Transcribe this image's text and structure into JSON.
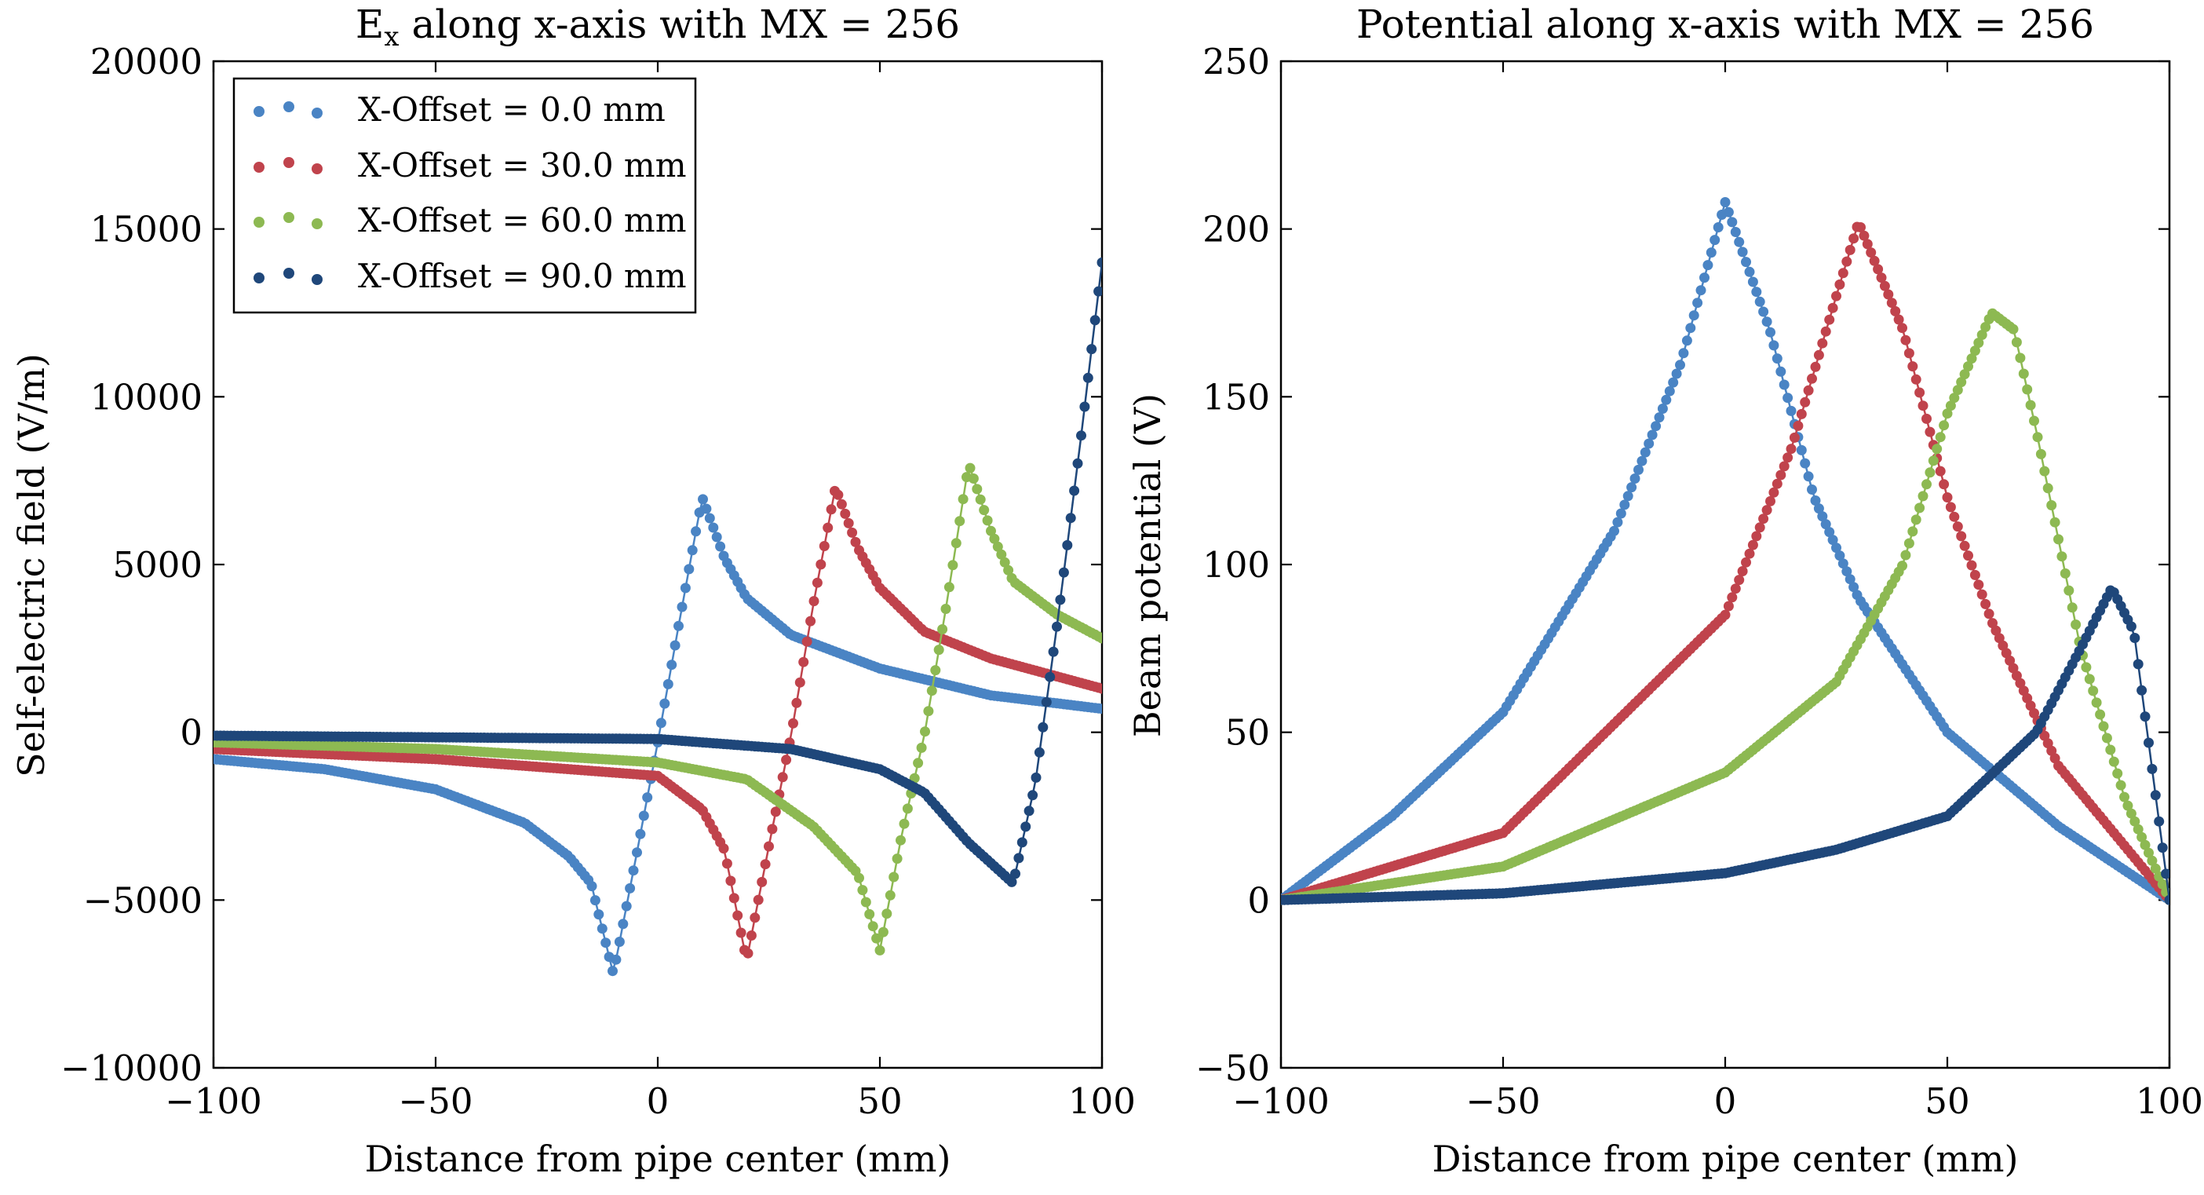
{
  "chart_data": [
    {
      "type": "scatter",
      "title": "E",
      "title_sub": "x",
      "title_rest": " along x-axis with MX = 256",
      "xlabel": "Distance from pipe center (mm)",
      "ylabel": "Self-electric field (V/m)",
      "xlim": [
        -100,
        100
      ],
      "ylim": [
        -10000,
        20000
      ],
      "xticks": [
        -100,
        -50,
        0,
        50,
        100
      ],
      "yticks": [
        -10000,
        -5000,
        0,
        5000,
        10000,
        15000,
        20000
      ],
      "xtick_labels": [
        "−100",
        "−50",
        "0",
        "50",
        "100"
      ],
      "ytick_labels": [
        "−10000",
        "−5000",
        "0",
        "5000",
        "10000",
        "15000",
        "20000"
      ],
      "legend": "top-left",
      "series": [
        {
          "name": "X-Offset = 0.0 mm",
          "offset": 0,
          "color": "#4a84c4",
          "points": [
            [
              -100,
              -800
            ],
            [
              -75,
              -1100
            ],
            [
              -50,
              -1700
            ],
            [
              -30,
              -2700
            ],
            [
              -20,
              -3700
            ],
            [
              -15,
              -4500
            ],
            [
              -10,
              -7200
            ],
            [
              -5,
              -3800
            ],
            [
              0,
              -300
            ],
            [
              5,
              3400
            ],
            [
              10,
              7000
            ],
            [
              15,
              5200
            ],
            [
              20,
              4000
            ],
            [
              30,
              2900
            ],
            [
              50,
              1900
            ],
            [
              75,
              1100
            ],
            [
              100,
              700
            ]
          ]
        },
        {
          "name": "X-Offset = 30.0 mm",
          "offset": 30,
          "color": "#c0434c",
          "points": [
            [
              -100,
              -500
            ],
            [
              -50,
              -800
            ],
            [
              0,
              -1300
            ],
            [
              10,
              -2300
            ],
            [
              15,
              -3500
            ],
            [
              20,
              -6800
            ],
            [
              25,
              -3400
            ],
            [
              30,
              -100
            ],
            [
              35,
              3800
            ],
            [
              40,
              7300
            ],
            [
              45,
              5500
            ],
            [
              50,
              4300
            ],
            [
              60,
              3000
            ],
            [
              75,
              2200
            ],
            [
              100,
              1300
            ]
          ]
        },
        {
          "name": "X-Offset = 60.0 mm",
          "offset": 60,
          "color": "#8db952",
          "points": [
            [
              -100,
              -300
            ],
            [
              -50,
              -500
            ],
            [
              0,
              -900
            ],
            [
              20,
              -1400
            ],
            [
              35,
              -2800
            ],
            [
              45,
              -4200
            ],
            [
              50,
              -6500
            ],
            [
              55,
              -3000
            ],
            [
              60,
              -100
            ],
            [
              65,
              3800
            ],
            [
              70,
              8000
            ],
            [
              75,
              6000
            ],
            [
              80,
              4500
            ],
            [
              90,
              3500
            ],
            [
              100,
              2800
            ]
          ]
        },
        {
          "name": "X-Offset = 90.0 mm",
          "offset": 90,
          "color": "#1f477a",
          "points": [
            [
              -100,
              -100
            ],
            [
              -50,
              -150
            ],
            [
              0,
              -200
            ],
            [
              30,
              -500
            ],
            [
              50,
              -1100
            ],
            [
              60,
              -1800
            ],
            [
              70,
              -3300
            ],
            [
              80,
              -4500
            ],
            [
              85,
              -1500
            ],
            [
              90,
              3300
            ],
            [
              95,
              8500
            ],
            [
              100,
              14000
            ]
          ]
        }
      ]
    },
    {
      "type": "scatter",
      "title": "Potential along x-axis with MX = 256",
      "xlabel": "Distance from pipe center (mm)",
      "ylabel": "Beam potential (V)",
      "xlim": [
        -100,
        100
      ],
      "ylim": [
        -50,
        250
      ],
      "xticks": [
        -100,
        -50,
        0,
        50,
        100
      ],
      "yticks": [
        -50,
        0,
        50,
        100,
        150,
        200,
        250
      ],
      "xtick_labels": [
        "−100",
        "−50",
        "0",
        "50",
        "100"
      ],
      "ytick_labels": [
        "−50",
        "0",
        "50",
        "100",
        "150",
        "200",
        "250"
      ],
      "series": [
        {
          "name": "X-Offset = 0.0 mm",
          "offset": 0,
          "color": "#4a84c4",
          "points": [
            [
              -100,
              0
            ],
            [
              -75,
              25
            ],
            [
              -50,
              56
            ],
            [
              -25,
              110
            ],
            [
              -10,
              160
            ],
            [
              0,
              208
            ],
            [
              10,
              170
            ],
            [
              20,
              120
            ],
            [
              30,
              90
            ],
            [
              50,
              50
            ],
            [
              75,
              22
            ],
            [
              100,
              0
            ]
          ]
        },
        {
          "name": "X-Offset = 30.0 mm",
          "offset": 30,
          "color": "#c0434c",
          "points": [
            [
              -100,
              0
            ],
            [
              -50,
              20
            ],
            [
              0,
              85
            ],
            [
              15,
              135
            ],
            [
              25,
              180
            ],
            [
              30,
              202
            ],
            [
              40,
              170
            ],
            [
              50,
              120
            ],
            [
              60,
              83
            ],
            [
              75,
              40
            ],
            [
              100,
              0
            ]
          ]
        },
        {
          "name": "X-Offset = 60.0 mm",
          "offset": 60,
          "color": "#8db952",
          "points": [
            [
              -100,
              0
            ],
            [
              -50,
              10
            ],
            [
              0,
              38
            ],
            [
              25,
              65
            ],
            [
              40,
              100
            ],
            [
              50,
              145
            ],
            [
              60,
              175
            ],
            [
              65,
              170
            ],
            [
              70,
              140
            ],
            [
              80,
              75
            ],
            [
              90,
              30
            ],
            [
              100,
              0
            ]
          ]
        },
        {
          "name": "X-Offset = 90.0 mm",
          "offset": 90,
          "color": "#1f477a",
          "points": [
            [
              -100,
              0
            ],
            [
              -50,
              2
            ],
            [
              0,
              8
            ],
            [
              25,
              15
            ],
            [
              50,
              25
            ],
            [
              70,
              50
            ],
            [
              80,
              75
            ],
            [
              87,
              93
            ],
            [
              92,
              80
            ],
            [
              96,
              40
            ],
            [
              100,
              0
            ]
          ]
        }
      ]
    }
  ]
}
